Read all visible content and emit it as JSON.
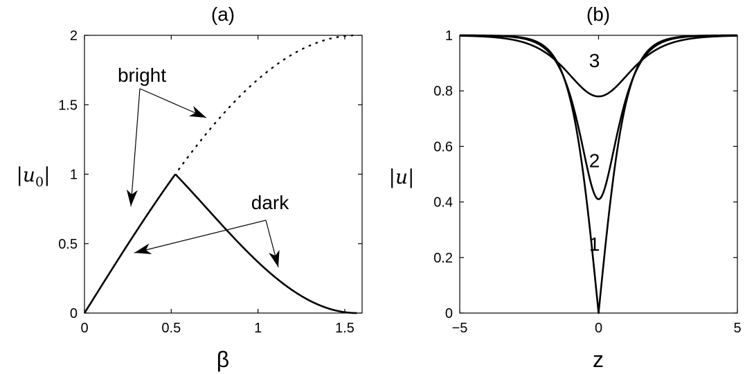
{
  "chart_data": [
    {
      "panel": "(a)",
      "type": "line",
      "title": "(a)",
      "xlabel": "β",
      "ylabel": "|u0|",
      "xlim": [
        0,
        1.6
      ],
      "ylim": [
        0,
        2
      ],
      "xticks": [
        "0",
        "0.5",
        "1",
        "1.5"
      ],
      "yticks": [
        "0",
        "0.5",
        "1",
        "1.5",
        "2"
      ],
      "grid": false,
      "series": [
        {
          "style": "solid",
          "x": [
            0,
            0.1,
            0.2,
            0.3,
            0.4,
            0.5,
            0.5236
          ],
          "y": [
            0,
            0.191,
            0.382,
            0.573,
            0.764,
            0.955,
            1.0
          ]
        },
        {
          "style": "solid",
          "x": [
            0.5236,
            0.6,
            0.7,
            0.8,
            0.9,
            1.0,
            1.1,
            1.2,
            1.3,
            1.4,
            1.5,
            1.5708
          ],
          "y": [
            1.0,
            0.902,
            0.758,
            0.608,
            0.466,
            0.34,
            0.231,
            0.142,
            0.073,
            0.027,
            0.004,
            0.0
          ]
        },
        {
          "style": "dotted",
          "x": [
            0.5236,
            0.6,
            0.7,
            0.8,
            0.9,
            1.0,
            1.1,
            1.2,
            1.3,
            1.4,
            1.5,
            1.5708
          ],
          "y": [
            1.0,
            1.13,
            1.289,
            1.434,
            1.566,
            1.683,
            1.782,
            1.864,
            1.927,
            1.972,
            1.996,
            2.0
          ]
        }
      ],
      "annotations": [
        {
          "text": "bright",
          "x": 0.27,
          "y": 1.72,
          "arrows_to": [
            [
              0.27,
              0.63
            ],
            [
              0.71,
              1.4
            ]
          ]
        },
        {
          "text": "dark",
          "x": 1.02,
          "y": 0.8,
          "arrows_to": [
            [
              0.28,
              0.45
            ],
            [
              1.08,
              0.33
            ]
          ]
        }
      ]
    },
    {
      "panel": "(b)",
      "type": "line",
      "title": "(b)",
      "xlabel": "z",
      "ylabel": "|u|",
      "xlim": [
        -5,
        5
      ],
      "ylim": [
        0,
        1
      ],
      "xticks": [
        "−5",
        "0",
        "5"
      ],
      "yticks": [
        "0",
        "0.2",
        "0.4",
        "0.6",
        "0.8",
        "1"
      ],
      "grid": false,
      "series": [
        {
          "name": "1",
          "function": "tanh(|z|)",
          "min": 0.0
        },
        {
          "name": "2",
          "function": "sqrt(1-(1-0.41^2)*sech^2(z*sqrt(1-0.41^2)))",
          "min": 0.41
        },
        {
          "name": "3",
          "function": "sqrt(1-(1-0.78^2)*sech^2(z*sqrt(1-0.78^2)))",
          "min": 0.78
        }
      ],
      "annotations": [
        {
          "text": "1",
          "x": -0.15,
          "y": 0.25
        },
        {
          "text": "2",
          "x": -0.15,
          "y": 0.55
        },
        {
          "text": "3",
          "x": -0.15,
          "y": 0.91
        }
      ]
    }
  ]
}
